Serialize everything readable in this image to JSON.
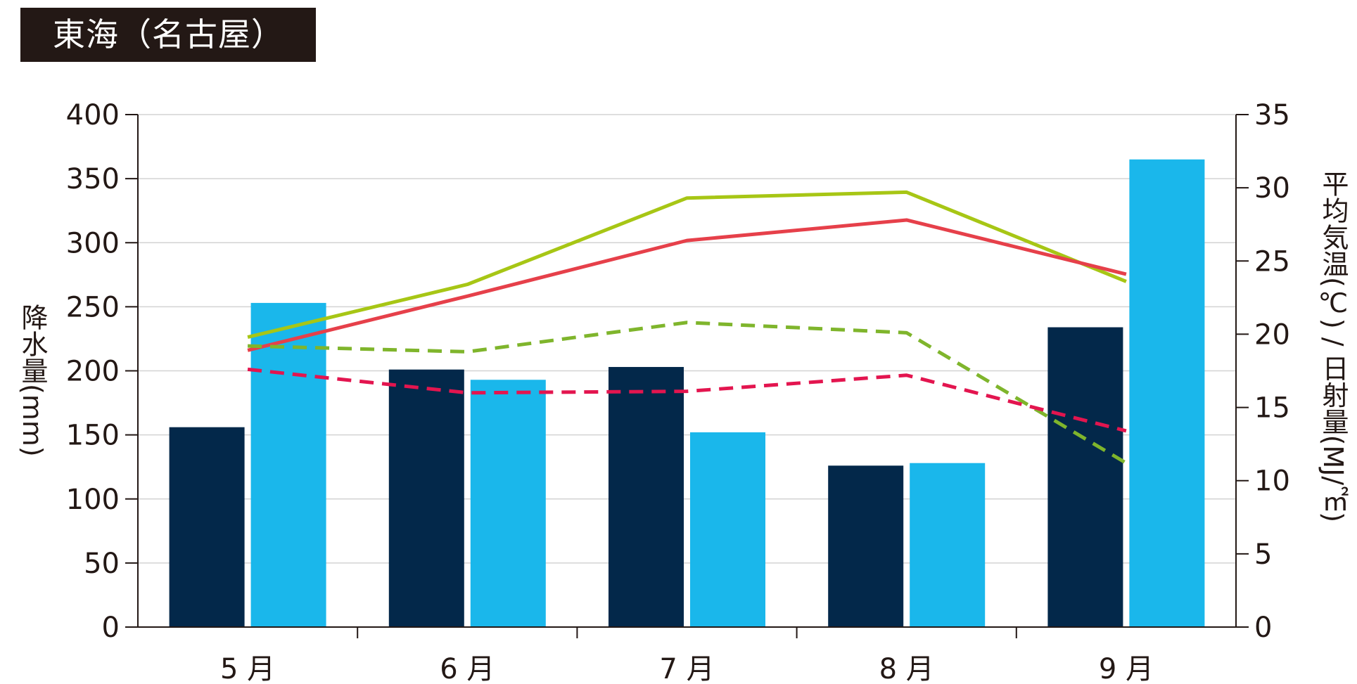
{
  "title": "東海（名古屋）",
  "chart_data": {
    "type": "bar",
    "title": "東海（名古屋）",
    "categories": [
      "5 月",
      "6 月",
      "7 月",
      "8 月",
      "9 月"
    ],
    "ylabel_left": "降水量(mm)",
    "ylabel_right": "平均気温(℃) / 日射量(MJ/㎡)",
    "ylim_left": [
      0,
      400
    ],
    "ylim_right": [
      0,
      35
    ],
    "yticks_left": [
      "0",
      "50",
      "100",
      "150",
      "200",
      "250",
      "300",
      "350",
      "400"
    ],
    "yticks_right": [
      "0",
      "5",
      "10",
      "15",
      "20",
      "25",
      "30",
      "35"
    ],
    "grid": true,
    "bar_series": [
      {
        "axis": "left",
        "color": "#03284a",
        "values": [
          156,
          201,
          203,
          126,
          234
        ]
      },
      {
        "axis": "left",
        "color": "#1ab7eb",
        "values": [
          253,
          193,
          152,
          128,
          365
        ]
      }
    ],
    "line_series": [
      {
        "axis": "right",
        "color": "#a7c615",
        "style": "solid",
        "values": [
          19.8,
          23.4,
          29.3,
          29.7,
          23.6
        ]
      },
      {
        "axis": "right",
        "color": "#e6404a",
        "style": "solid",
        "values": [
          18.9,
          22.6,
          26.4,
          27.8,
          24.1
        ]
      },
      {
        "axis": "right",
        "color": "#7fb52c",
        "style": "dashed",
        "values": [
          19.2,
          18.8,
          20.8,
          20.1,
          11.2
        ]
      },
      {
        "axis": "right",
        "color": "#e3154f",
        "style": "dashed",
        "values": [
          17.6,
          16.0,
          16.1,
          17.2,
          13.4
        ]
      }
    ]
  }
}
